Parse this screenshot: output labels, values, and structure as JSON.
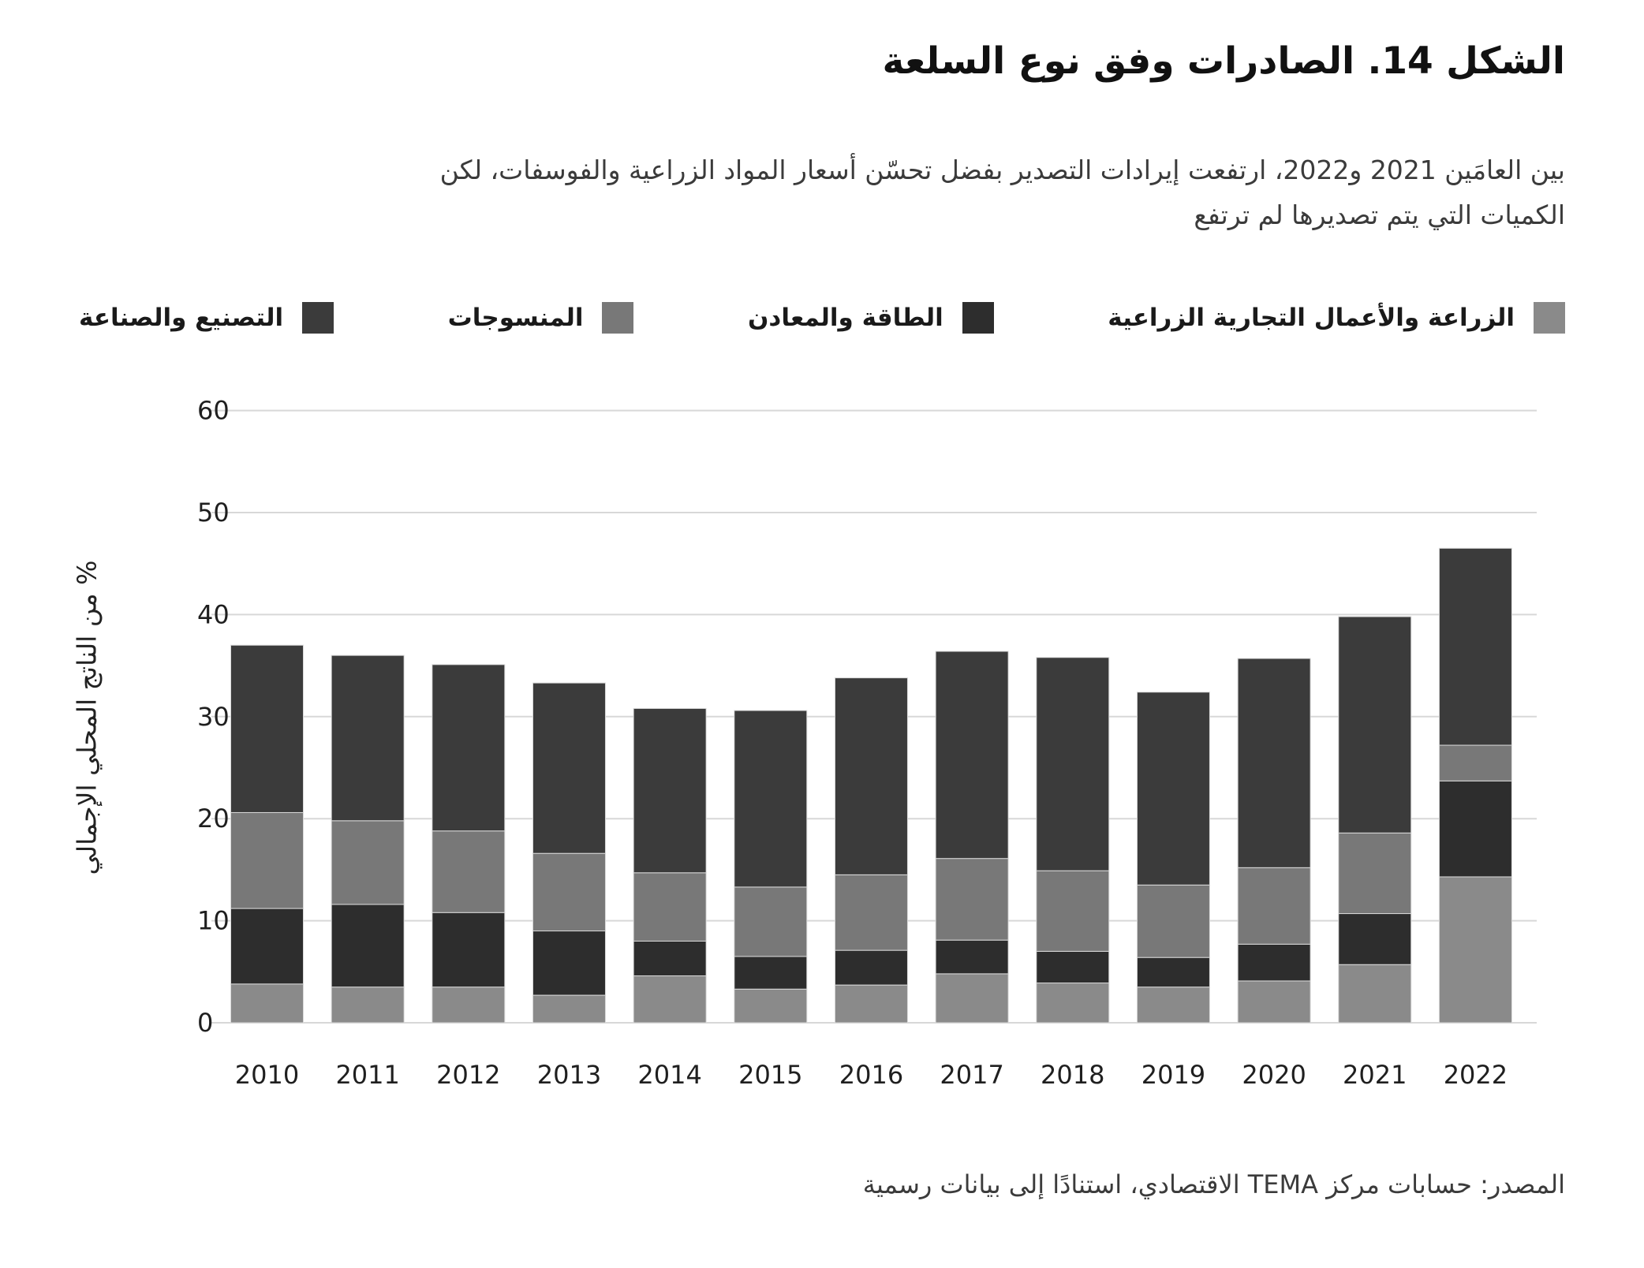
{
  "figure": {
    "title": "الشكل 14. الصادرات وفق نوع السلعة",
    "subtitle_line1": "بين العامَين 2021 و2022، ارتفعت إيرادات التصدير بفضل تحسّن أسعار المواد الزراعية والفوسفات، لكن",
    "subtitle_line2": "الكميات التي يتم تصديرها لم ترتفع",
    "source": "المصدر: حسابات مركز TEMA الاقتصادي، استنادًا إلى بيانات رسمية"
  },
  "chart_data": {
    "type": "bar",
    "stacked": true,
    "title": "الشكل 14. الصادرات وفق نوع السلعة",
    "ylabel": "% من الناتج المحلي الإجمالي",
    "xlabel": "",
    "ylim": [
      0,
      60
    ],
    "yticks": [
      0,
      10,
      20,
      30,
      40,
      50,
      60
    ],
    "grid": true,
    "legend_position": "top",
    "categories": [
      "2010",
      "2011",
      "2012",
      "2013",
      "2014",
      "2015",
      "2016",
      "2017",
      "2018",
      "2019",
      "2020",
      "2021",
      "2022"
    ],
    "series": [
      {
        "name": "الزراعة والأعمال التجارية الزراعية",
        "color": "#8a8a8a",
        "values": [
          3.8,
          3.5,
          3.5,
          2.7,
          4.6,
          3.3,
          3.7,
          4.8,
          3.9,
          3.5,
          4.1,
          5.7,
          14.3
        ]
      },
      {
        "name": "الطاقة والمعادن",
        "color": "#2d2d2d",
        "values": [
          7.4,
          8.1,
          7.3,
          6.3,
          3.4,
          3.2,
          3.4,
          3.3,
          3.1,
          2.9,
          3.6,
          5.0,
          9.4
        ]
      },
      {
        "name": "المنسوجات",
        "color": "#787878",
        "values": [
          9.4,
          8.2,
          8.0,
          7.6,
          6.7,
          6.8,
          7.4,
          8.0,
          7.9,
          7.1,
          7.5,
          7.9,
          3.5
        ]
      },
      {
        "name": "التصنيع والصناعة",
        "color": "#3b3b3b",
        "values": [
          16.4,
          16.2,
          16.3,
          16.7,
          16.1,
          17.3,
          19.3,
          20.3,
          20.9,
          18.9,
          20.5,
          21.2,
          19.3
        ]
      }
    ]
  }
}
